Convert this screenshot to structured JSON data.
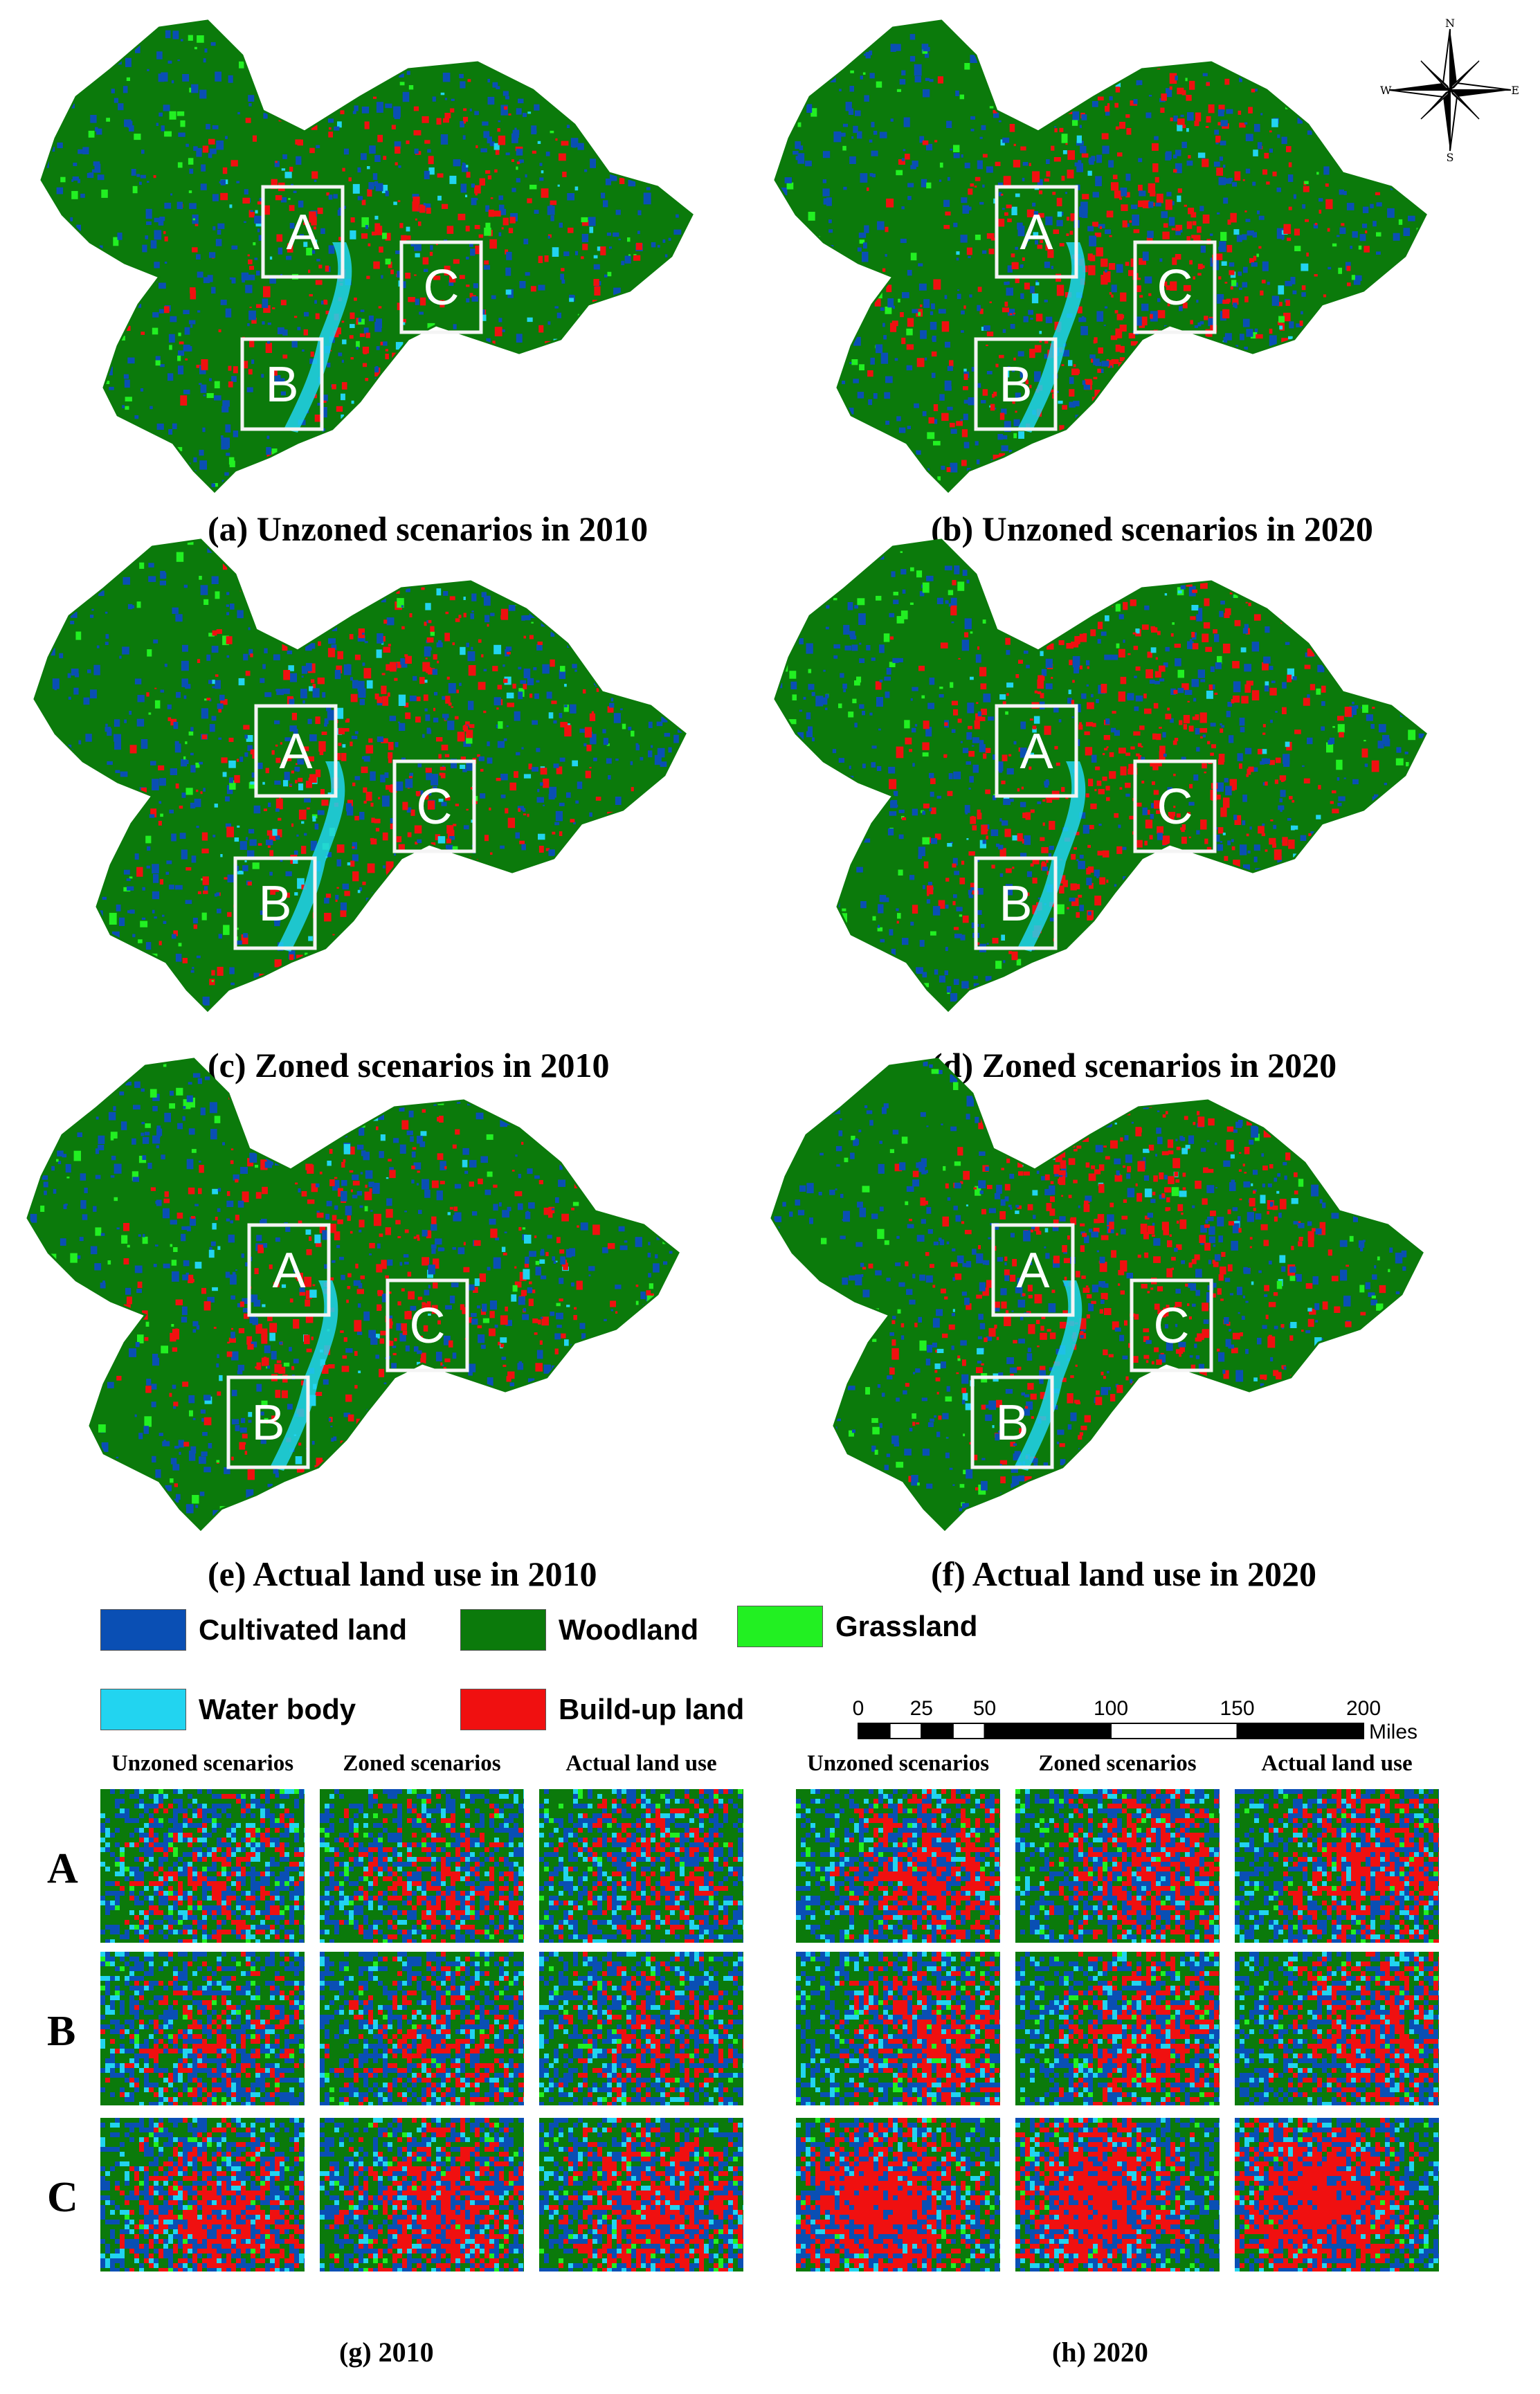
{
  "map_panels": [
    {
      "id": "a",
      "caption": "(a) Unzoned scenarios in 2010",
      "box_labels": [
        "A",
        "B",
        "C"
      ],
      "builtup_level": 0.3
    },
    {
      "id": "b",
      "caption": "(b) Unzoned scenarios in 2020",
      "box_labels": [
        "A",
        "B",
        "C"
      ],
      "builtup_level": 0.45
    },
    {
      "id": "c",
      "caption": "(c) Zoned scenarios in 2010",
      "box_labels": [
        "A",
        "B",
        "C"
      ],
      "builtup_level": 0.4
    },
    {
      "id": "d",
      "caption": "(d) Zoned scenarios in 2020",
      "box_labels": [
        "A",
        "B",
        "C"
      ],
      "builtup_level": 0.5
    },
    {
      "id": "e",
      "caption": "(e) Actual land use in 2010",
      "box_labels": [
        "A",
        "B",
        "C"
      ],
      "builtup_level": 0.38
    },
    {
      "id": "f",
      "caption": "(f) Actual land use in 2020",
      "box_labels": [
        "A",
        "B",
        "C"
      ],
      "builtup_level": 0.52
    }
  ],
  "compass": {
    "n": "N",
    "s": "S",
    "e": "E",
    "w": "W"
  },
  "legend": [
    {
      "label": "Cultivated land",
      "color": "#0a4fb4"
    },
    {
      "label": "Woodland",
      "color": "#0b7a0b"
    },
    {
      "label": "Grassland",
      "color": "#22f022"
    },
    {
      "label": "Water body",
      "color": "#22d4f0"
    },
    {
      "label": "Build-up land",
      "color": "#f01010"
    }
  ],
  "scale_bar": {
    "ticks": [
      "0",
      "25",
      "50",
      "100",
      "150",
      "200"
    ],
    "unit": "Miles"
  },
  "zoom": {
    "headers": [
      "Unzoned scenarios",
      "Zoned scenarios",
      "Actual land use"
    ],
    "rows": [
      "A",
      "B",
      "C"
    ],
    "captions": [
      "(g)  2010",
      "(h)  2020"
    ]
  }
}
